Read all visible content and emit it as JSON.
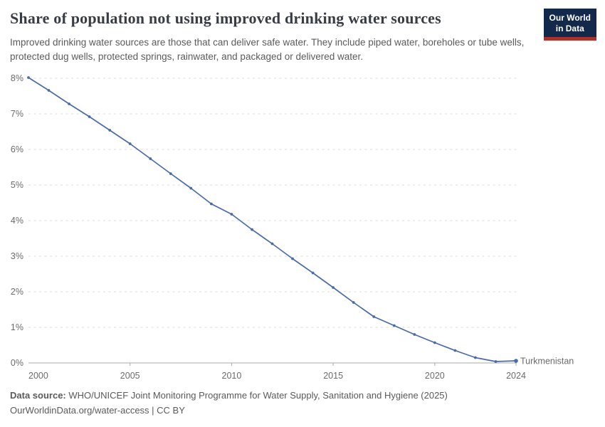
{
  "header": {
    "logo": {
      "line1": "Our World",
      "line2": "in Data",
      "bg_color": "#12294b",
      "stripe_color": "#a8332c"
    }
  },
  "chart_data": {
    "type": "line",
    "title": "Share of population not using improved drinking water sources",
    "subtitle": "Improved drinking water sources are those that can deliver safe water. They include piped water, boreholes or tube wells, protected dug wells, protected springs, rainwater, and packaged or delivered water.",
    "x": [
      2000,
      2001,
      2002,
      2003,
      2004,
      2005,
      2006,
      2007,
      2008,
      2009,
      2010,
      2011,
      2012,
      2013,
      2014,
      2015,
      2016,
      2017,
      2018,
      2019,
      2020,
      2021,
      2022,
      2023,
      2024
    ],
    "series": [
      {
        "name": "Turkmenistan",
        "values": [
          8.02,
          7.66,
          7.28,
          6.92,
          6.54,
          6.16,
          5.74,
          5.32,
          4.91,
          4.47,
          4.18,
          3.75,
          3.35,
          2.93,
          2.53,
          2.12,
          1.7,
          1.3,
          1.05,
          0.8,
          0.57,
          0.35,
          0.15,
          0.04,
          0.06
        ],
        "color": "#4a6ba8",
        "label_color": "#3a5c94"
      }
    ],
    "xlabel": "",
    "ylabel": "",
    "ylim": [
      0,
      8
    ],
    "xlim": [
      2000,
      2024
    ],
    "yticks": [
      {
        "value": 0,
        "label": "0%"
      },
      {
        "value": 1,
        "label": "1%"
      },
      {
        "value": 2,
        "label": "2%"
      },
      {
        "value": 3,
        "label": "3%"
      },
      {
        "value": 4,
        "label": "4%"
      },
      {
        "value": 5,
        "label": "5%"
      },
      {
        "value": 6,
        "label": "6%"
      },
      {
        "value": 7,
        "label": "7%"
      },
      {
        "value": 8,
        "label": "8%"
      }
    ],
    "xticks": [
      {
        "value": 2000,
        "label": "2000"
      },
      {
        "value": 2005,
        "label": "2005"
      },
      {
        "value": 2010,
        "label": "2010"
      },
      {
        "value": 2015,
        "label": "2015"
      },
      {
        "value": 2020,
        "label": "2020"
      },
      {
        "value": 2024,
        "label": "2024"
      }
    ],
    "grid": "horizontal-dashed",
    "gridline_color": "#dcdcdc",
    "axis_color": "#a9a9a9",
    "tick_label_color": "#6b6b6b",
    "legend": "series-label-at-line-end"
  },
  "footer": {
    "data_source_label": "Data source:",
    "data_source_text": "WHO/UNICEF Joint Monitoring Programme for Water Supply, Sanitation and Hygiene (2025)",
    "citation": "OurWorldinData.org/water-access | CC BY"
  }
}
